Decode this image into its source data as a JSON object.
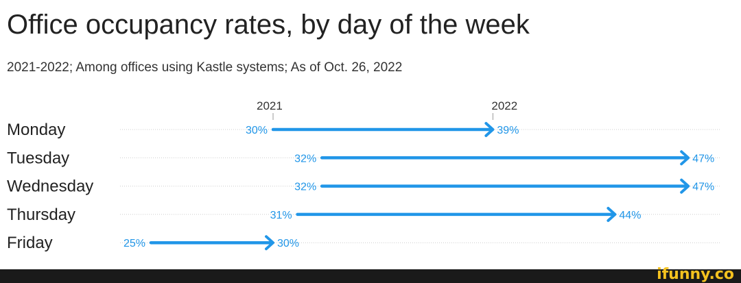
{
  "title": "Office occupancy rates, by day of the week",
  "subtitle": "2021-2022; Among offices using Kastle systems; As of Oct. 26, 2022",
  "watermark": "ifunny.co",
  "chart_data": {
    "type": "arrow",
    "title": "Office occupancy rates, by day of the week",
    "subtitle": "2021-2022; Among offices using Kastle systems; As of Oct. 26, 2022",
    "legend": [
      "2021",
      "2022"
    ],
    "categories": [
      "Monday",
      "Tuesday",
      "Wednesday",
      "Thursday",
      "Friday"
    ],
    "series": [
      {
        "name": "2021",
        "values": [
          30,
          32,
          32,
          31,
          25
        ]
      },
      {
        "name": "2022",
        "values": [
          39,
          47,
          47,
          44,
          30
        ]
      }
    ],
    "color": "#2196e8",
    "grid": "dotted row lines"
  }
}
